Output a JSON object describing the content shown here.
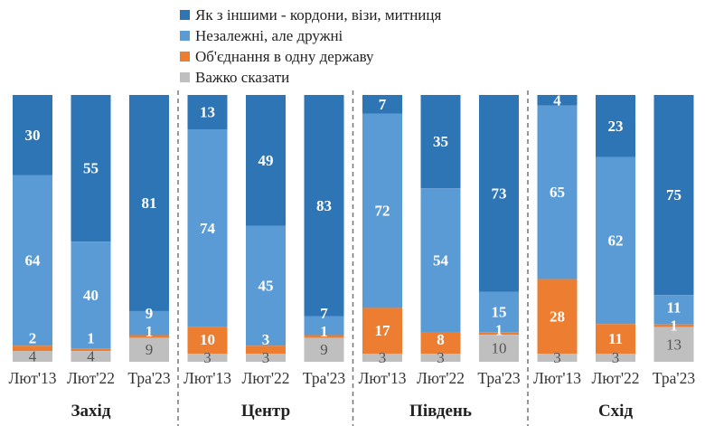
{
  "chart_data": {
    "type": "bar",
    "stacked": true,
    "legend_position": "top",
    "series": [
      {
        "name": "Як з іншими - кордони, візи, митниця",
        "color": "#2e75b6"
      },
      {
        "name": "Незалежні, але дружні",
        "color": "#5b9bd5"
      },
      {
        "name": "Об'єднання в одну державу",
        "color": "#ed7d31"
      },
      {
        "name": "Важко сказати",
        "color": "#bfbfbf"
      }
    ],
    "groups": [
      {
        "region": "Захід",
        "bars": [
          {
            "period": "Лют'13",
            "values": [
              30,
              64,
              2,
              4
            ]
          },
          {
            "period": "Лют'22",
            "values": [
              55,
              40,
              1,
              4
            ]
          },
          {
            "period": "Тра'23",
            "values": [
              81,
              9,
              1,
              9
            ]
          }
        ]
      },
      {
        "region": "Центр",
        "bars": [
          {
            "period": "Лют'13",
            "values": [
              13,
              74,
              10,
              3
            ]
          },
          {
            "period": "Лют'22",
            "values": [
              49,
              45,
              3,
              3
            ]
          },
          {
            "period": "Тра'23",
            "values": [
              83,
              7,
              1,
              9
            ]
          }
        ]
      },
      {
        "region": "Південь",
        "bars": [
          {
            "period": "Лют'13",
            "values": [
              7,
              72,
              17,
              3
            ]
          },
          {
            "period": "Лют'22",
            "values": [
              35,
              54,
              8,
              3
            ]
          },
          {
            "period": "Тра'23",
            "values": [
              73,
              15,
              1,
              10
            ]
          }
        ]
      },
      {
        "region": "Схід",
        "bars": [
          {
            "period": "Лют'13",
            "values": [
              4,
              65,
              28,
              3
            ]
          },
          {
            "period": "Лют'22",
            "values": [
              23,
              62,
              11,
              3
            ]
          },
          {
            "period": "Тра'23",
            "values": [
              75,
              11,
              1,
              13
            ]
          }
        ]
      }
    ],
    "grid": false
  }
}
